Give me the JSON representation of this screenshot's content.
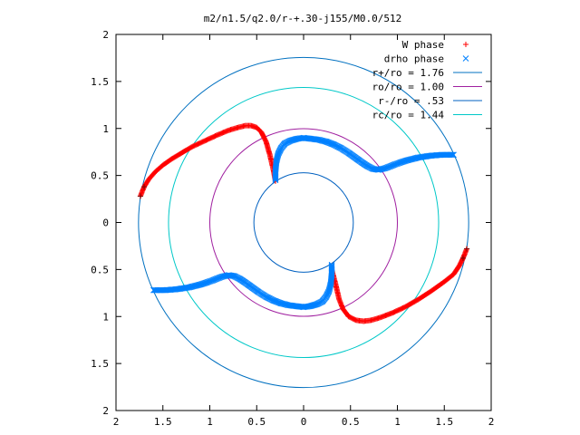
{
  "chart_data": {
    "type": "scatter",
    "title": "m2/n1.5/q2.0/r-+.30-j155/M0.0/512",
    "xlim": [
      -2,
      2
    ],
    "ylim": [
      -2,
      2
    ],
    "x_ticks": [
      -2,
      -1.5,
      -1,
      -0.5,
      0,
      0.5,
      1,
      1.5,
      2
    ],
    "y_ticks": [
      -2,
      -1.5,
      -1,
      -0.5,
      0,
      0.5,
      1,
      1.5,
      2
    ],
    "x_tick_labels": [
      "2",
      "1.5",
      "1",
      "0.5",
      "0",
      "0.5",
      "1",
      "1.5",
      "2"
    ],
    "y_tick_labels": [
      "2",
      "1.5",
      "1",
      "0.5",
      "0",
      "0.5",
      "1",
      "1.5",
      "2"
    ],
    "grid": false,
    "legend_position": "top-right",
    "legend": [
      {
        "label": "W phase",
        "marker": "+",
        "color": "#ff0000"
      },
      {
        "label": "drho phase",
        "marker": "x",
        "color": "#0080ff"
      },
      {
        "label": "r+/ro = 1.76",
        "line": true,
        "color": "#0070c0"
      },
      {
        "label": "ro/ro = 1.00",
        "line": true,
        "color": "#a020a0"
      },
      {
        "label": "r-/ro = .53",
        "line": true,
        "color": "#0060c0"
      },
      {
        "label": "rc/ro = 1.44",
        "line": true,
        "color": "#00c8c8"
      }
    ],
    "circles": [
      {
        "r": 1.76,
        "color": "#0070c0"
      },
      {
        "r": 1.0,
        "color": "#a020a0"
      },
      {
        "r": 0.53,
        "color": "#0060c0"
      },
      {
        "r": 1.44,
        "color": "#00c8c8"
      }
    ],
    "series": [
      {
        "name": "W phase",
        "marker": "+",
        "color": "#ff0000",
        "dark_color": "#800000",
        "x": [
          -1.74,
          -1.7,
          -1.65,
          -1.58,
          -1.5,
          -1.4,
          -1.3,
          -1.18,
          -1.05,
          -0.92,
          -0.8,
          -0.7,
          -0.62,
          -0.56,
          -0.5,
          -0.45,
          -0.4,
          -0.36,
          -0.32,
          -0.3
        ],
        "y": [
          0.28,
          0.38,
          0.46,
          0.54,
          0.61,
          0.68,
          0.74,
          0.81,
          0.87,
          0.93,
          0.98,
          1.01,
          1.03,
          1.03,
          1.01,
          0.96,
          0.86,
          0.72,
          0.55,
          0.44
        ],
        "dark_points": [
          [
            -1.74,
            0.28
          ],
          [
            -1.7,
            0.38
          ]
        ]
      },
      {
        "name": "W phase",
        "marker": "+",
        "color": "#ff0000",
        "dark_color": "#800000",
        "x": [
          0.3,
          0.34,
          0.38,
          0.42,
          0.48,
          0.56,
          0.64,
          0.72,
          0.82,
          0.95,
          1.08,
          1.22,
          1.36,
          1.5,
          1.6,
          1.66,
          1.7,
          1.74
        ],
        "y": [
          -0.5,
          -0.65,
          -0.82,
          -0.92,
          -1.0,
          -1.04,
          -1.05,
          -1.04,
          -1.01,
          -0.96,
          -0.9,
          -0.82,
          -0.73,
          -0.63,
          -0.55,
          -0.46,
          -0.38,
          -0.28
        ],
        "dark_points": [
          [
            1.7,
            -0.38
          ],
          [
            1.74,
            -0.28
          ]
        ]
      },
      {
        "name": "drho phase",
        "marker": "x",
        "color": "#0080ff",
        "x": [
          -0.3,
          -0.3,
          -0.29,
          -0.27,
          -0.24,
          -0.2,
          -0.14,
          -0.07,
          0.0,
          0.08,
          0.16,
          0.24,
          0.32,
          0.4,
          0.48,
          0.55,
          0.62,
          0.68,
          0.74,
          0.8,
          0.88,
          0.98,
          1.1,
          1.22,
          1.35,
          1.48,
          1.6
        ],
        "y": [
          0.45,
          0.55,
          0.65,
          0.73,
          0.79,
          0.84,
          0.87,
          0.89,
          0.9,
          0.89,
          0.88,
          0.86,
          0.83,
          0.79,
          0.74,
          0.69,
          0.64,
          0.6,
          0.57,
          0.56,
          0.58,
          0.62,
          0.66,
          0.69,
          0.71,
          0.72,
          0.72
        ]
      },
      {
        "name": "drho phase",
        "marker": "x",
        "color": "#0080ff",
        "x": [
          0.3,
          0.3,
          0.29,
          0.27,
          0.24,
          0.2,
          0.14,
          0.07,
          0.0,
          -0.08,
          -0.16,
          -0.24,
          -0.32,
          -0.4,
          -0.48,
          -0.55,
          -0.62,
          -0.68,
          -0.74,
          -0.8,
          -0.88,
          -0.98,
          -1.1,
          -1.22,
          -1.35,
          -1.48,
          -1.6
        ],
        "y": [
          -0.45,
          -0.55,
          -0.65,
          -0.73,
          -0.79,
          -0.84,
          -0.87,
          -0.89,
          -0.9,
          -0.89,
          -0.88,
          -0.86,
          -0.83,
          -0.79,
          -0.74,
          -0.69,
          -0.64,
          -0.6,
          -0.57,
          -0.56,
          -0.58,
          -0.62,
          -0.66,
          -0.69,
          -0.71,
          -0.72,
          -0.72
        ]
      }
    ]
  }
}
